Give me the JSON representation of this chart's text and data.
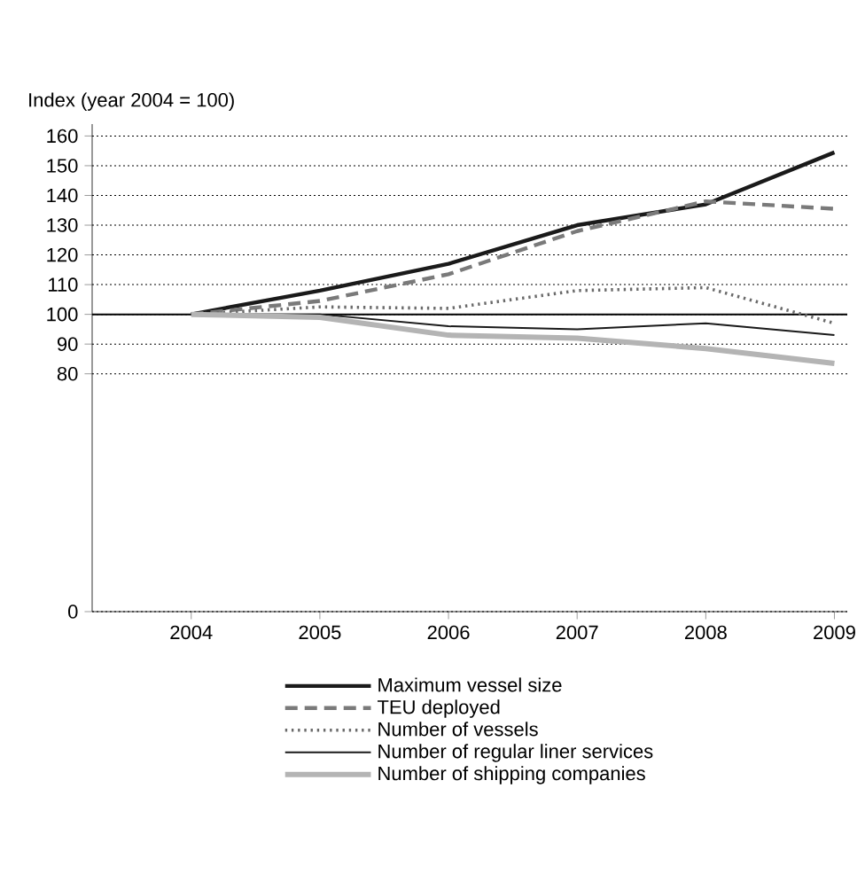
{
  "chart_data": {
    "type": "line",
    "ylabel": "Index (year 2004 = 100)",
    "categories": [
      "2004",
      "2005",
      "2006",
      "2007",
      "2008",
      "2009"
    ],
    "series": [
      {
        "name": "Maximum vessel size",
        "color": "#1a1a1a",
        "line_style": "solid",
        "values": [
          100,
          108,
          117,
          130,
          137,
          154.5
        ]
      },
      {
        "name": "TEU deployed",
        "color": "#7a7a7a",
        "line_style": "dashed",
        "values": [
          100,
          104.5,
          113.5,
          128,
          138,
          135.5
        ]
      },
      {
        "name": "Number of vessels",
        "color": "#6a6a6a",
        "line_style": "dotted",
        "values": [
          100,
          102.5,
          102,
          108,
          109,
          97
        ]
      },
      {
        "name": "Number of regular liner services",
        "color": "#1a1a1a",
        "line_style": "solid",
        "values": [
          100,
          100,
          96,
          95,
          97,
          93
        ]
      },
      {
        "name": "Number of shipping companies",
        "color": "#b4b4b4",
        "line_style": "solid",
        "values": [
          100,
          99,
          93,
          92,
          88.5,
          83.5
        ]
      }
    ],
    "ylim": [
      0,
      164
    ],
    "yticks": [
      0,
      80,
      90,
      100,
      110,
      120,
      130,
      140,
      150,
      160
    ],
    "ref_lines": [
      {
        "axis": "y",
        "value": 100,
        "color": "#000000"
      }
    ],
    "grid": "y",
    "legend": "bottom",
    "marker": "none"
  }
}
